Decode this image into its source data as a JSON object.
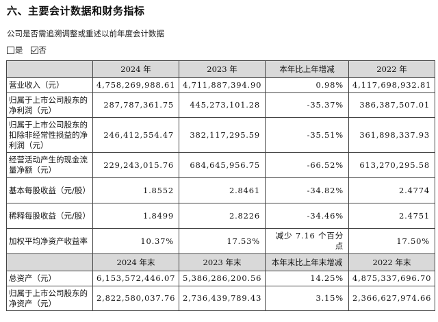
{
  "section_title": "六、主要会计数据和财务指标",
  "question": "公司是否需追溯调整或重述以前年度会计数据",
  "choices": [
    {
      "label": "是",
      "checked": false
    },
    {
      "label": "否",
      "checked": true
    }
  ],
  "table": {
    "header1": [
      "",
      "2024 年",
      "2023 年",
      "本年比上年增减",
      "2022 年"
    ],
    "rows1": [
      {
        "label": "营业收入（元）",
        "v2024": "4,758,269,988.61",
        "v2023": "4,711,887,394.90",
        "change": "0.98%",
        "v2022": "4,117,698,932.81"
      },
      {
        "label": "归属于上市公司股东的净利润（元）",
        "v2024": "287,787,361.75",
        "v2023": "445,273,101.28",
        "change": "-35.37%",
        "v2022": "386,387,507.01"
      },
      {
        "label": "归属于上市公司股东的扣除非经常性损益的净利润（元）",
        "v2024": "246,412,554.47",
        "v2023": "382,117,295.59",
        "change": "-35.51%",
        "v2022": "361,898,337.93"
      },
      {
        "label": "经营活动产生的现金流量净额（元）",
        "v2024": "229,243,015.76",
        "v2023": "684,645,956.75",
        "change": "-66.52%",
        "v2022": "613,270,295.58"
      },
      {
        "label": "基本每股收益（元/股）",
        "v2024": "1.8552",
        "v2023": "2.8461",
        "change": "-34.82%",
        "v2022": "2.4774"
      },
      {
        "label": "稀释每股收益（元/股）",
        "v2024": "1.8499",
        "v2023": "2.8226",
        "change": "-34.46%",
        "v2022": "2.4751"
      },
      {
        "label": "加权平均净资产收益率",
        "v2024": "10.37%",
        "v2023": "17.53%",
        "change": "减少 7.16 个百分点",
        "v2022": "17.50%"
      }
    ],
    "header2": [
      "",
      "2024 年末",
      "2023 年末",
      "本年末比上年末增减",
      "2022 年末"
    ],
    "rows2": [
      {
        "label": "总资产（元）",
        "v2024": "6,153,572,446.07",
        "v2023": "5,386,286,200.56",
        "change": "14.25%",
        "v2022": "4,875,337,696.70"
      },
      {
        "label": "归属于上市公司股东的净资产（元）",
        "v2024": "2,822,580,037.76",
        "v2023": "2,736,439,789.43",
        "change": "3.15%",
        "v2022": "2,366,627,974.66"
      }
    ]
  }
}
